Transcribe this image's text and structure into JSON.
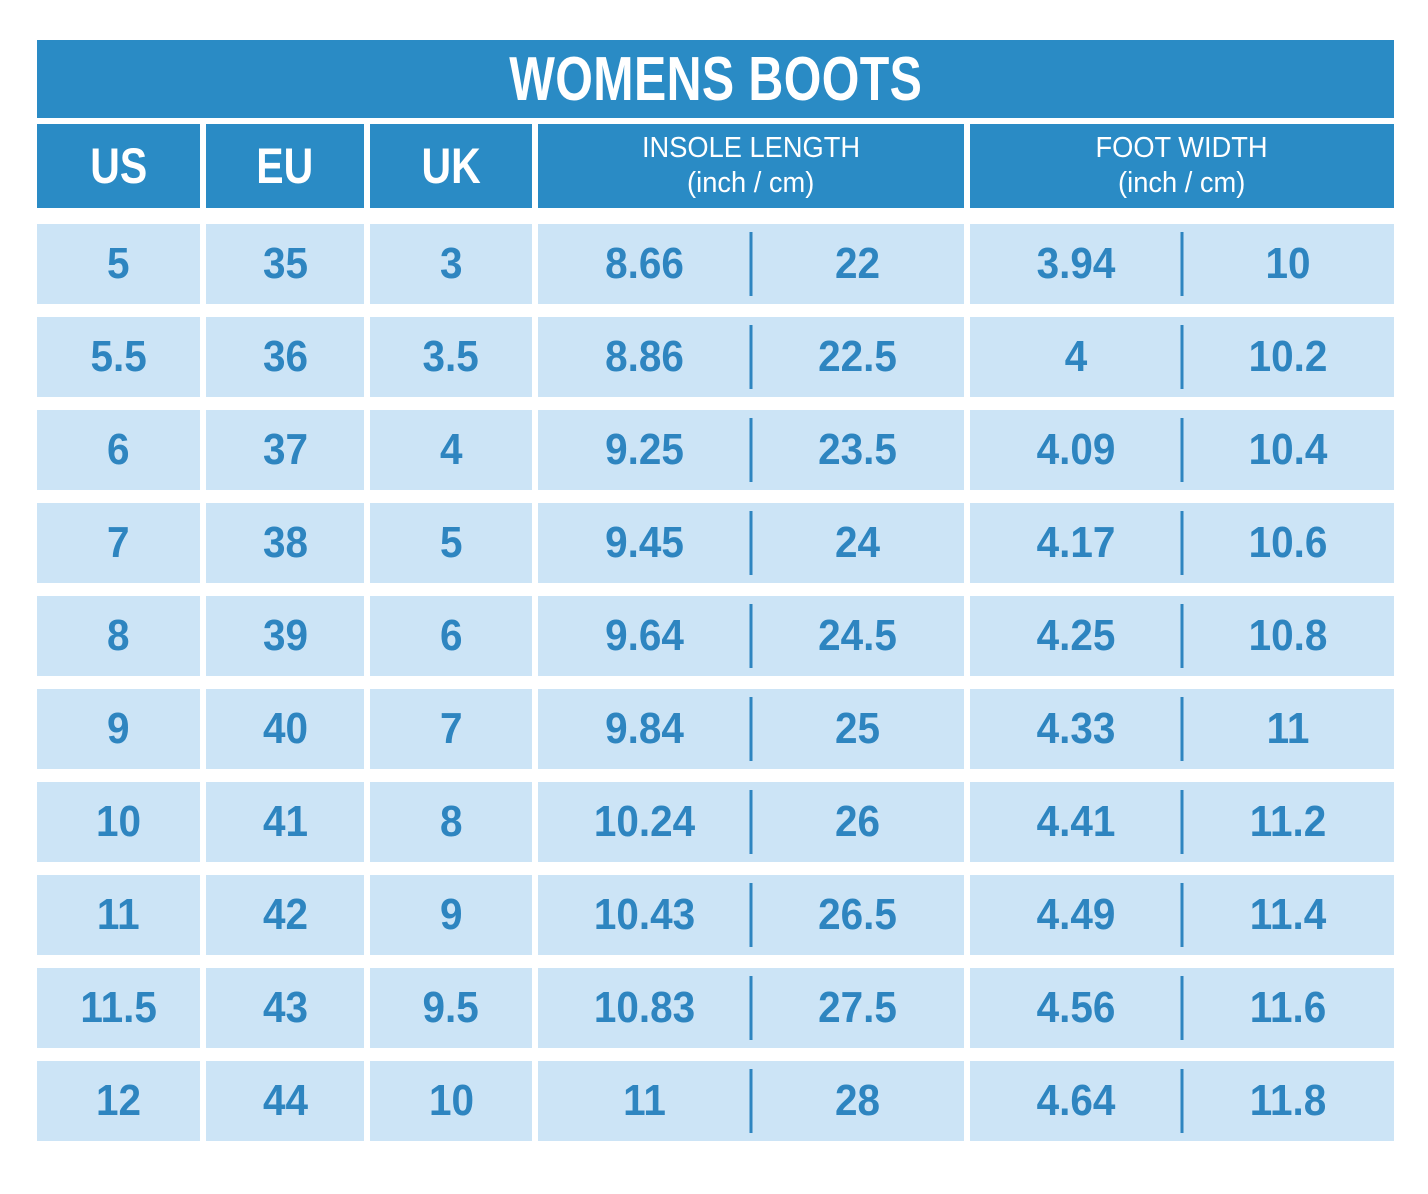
{
  "chart_data": {
    "type": "table",
    "title": "WOMENS BOOTS",
    "columns": [
      {
        "key": "us",
        "label": "US"
      },
      {
        "key": "eu",
        "label": "EU"
      },
      {
        "key": "uk",
        "label": "UK"
      },
      {
        "key": "insole",
        "label": "INSOLE LENGTH",
        "sublabel": "(inch / cm)"
      },
      {
        "key": "foot",
        "label": "FOOT WIDTH",
        "sublabel": "(inch / cm)"
      }
    ],
    "rows": [
      {
        "us": "5",
        "eu": "35",
        "uk": "3",
        "insole_inch": "8.66",
        "insole_cm": "22",
        "foot_inch": "3.94",
        "foot_cm": "10"
      },
      {
        "us": "5.5",
        "eu": "36",
        "uk": "3.5",
        "insole_inch": "8.86",
        "insole_cm": "22.5",
        "foot_inch": "4",
        "foot_cm": "10.2"
      },
      {
        "us": "6",
        "eu": "37",
        "uk": "4",
        "insole_inch": "9.25",
        "insole_cm": "23.5",
        "foot_inch": "4.09",
        "foot_cm": "10.4"
      },
      {
        "us": "7",
        "eu": "38",
        "uk": "5",
        "insole_inch": "9.45",
        "insole_cm": "24",
        "foot_inch": "4.17",
        "foot_cm": "10.6"
      },
      {
        "us": "8",
        "eu": "39",
        "uk": "6",
        "insole_inch": "9.64",
        "insole_cm": "24.5",
        "foot_inch": "4.25",
        "foot_cm": "10.8"
      },
      {
        "us": "9",
        "eu": "40",
        "uk": "7",
        "insole_inch": "9.84",
        "insole_cm": "25",
        "foot_inch": "4.33",
        "foot_cm": "11"
      },
      {
        "us": "10",
        "eu": "41",
        "uk": "8",
        "insole_inch": "10.24",
        "insole_cm": "26",
        "foot_inch": "4.41",
        "foot_cm": "11.2"
      },
      {
        "us": "11",
        "eu": "42",
        "uk": "9",
        "insole_inch": "10.43",
        "insole_cm": "26.5",
        "foot_inch": "4.49",
        "foot_cm": "11.4"
      },
      {
        "us": "11.5",
        "eu": "43",
        "uk": "9.5",
        "insole_inch": "10.83",
        "insole_cm": "27.5",
        "foot_inch": "4.56",
        "foot_cm": "11.6"
      },
      {
        "us": "12",
        "eu": "44",
        "uk": "10",
        "insole_inch": "11",
        "insole_cm": "28",
        "foot_inch": "4.64",
        "foot_cm": "11.8"
      }
    ],
    "colors": {
      "header_bg": "#2a8bc5",
      "cell_bg": "#cce4f6",
      "text_blue": "#2e85c0",
      "background": "#ffffff"
    },
    "layout": {
      "grid": "off",
      "legend": "none"
    }
  }
}
